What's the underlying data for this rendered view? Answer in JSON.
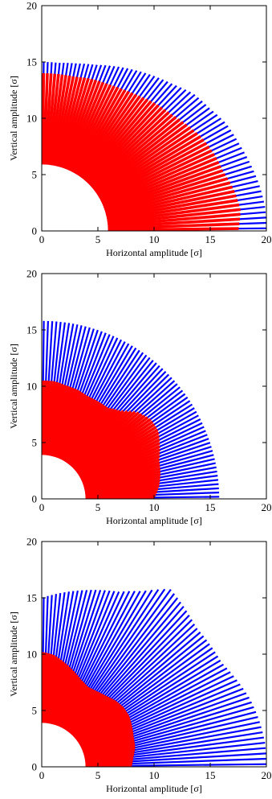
{
  "chart_data": [
    {
      "type": "scatter",
      "panel": 1,
      "xlabel": "Horizontal amplitude [σ]",
      "ylabel": "Vertical amplitude [σ]",
      "xlim": [
        0,
        20
      ],
      "ylim": [
        0,
        20
      ],
      "xticks": [
        0,
        5,
        10,
        15,
        20
      ],
      "yticks": [
        0,
        5,
        10,
        15,
        20
      ],
      "grid": false,
      "excluded_core_radius": 5.9,
      "series": [
        {
          "color": "#0000ff",
          "polar_scan_outer_radius": [
            20.0,
            20.0,
            19.8,
            19.5,
            19.2,
            19.0,
            18.5,
            18.2,
            17.5,
            17.0,
            16.5,
            16.0,
            15.5,
            15.2,
            15.0,
            15.0
          ]
        },
        {
          "color": "#ff0000",
          "polar_scan_outer_radius": [
            17.5,
            17.8,
            17.5,
            17.0,
            16.8,
            16.5,
            16.0,
            15.5,
            15.2,
            14.8,
            14.5,
            14.3,
            14.2,
            14.0,
            14.0,
            14.0
          ]
        }
      ]
    },
    {
      "type": "scatter",
      "panel": 2,
      "xlabel": "Horizontal amplitude [σ]",
      "ylabel": "Vertical amplitude [σ]",
      "xlim": [
        0,
        20
      ],
      "ylim": [
        0,
        20
      ],
      "xticks": [
        0,
        5,
        10,
        15,
        20
      ],
      "yticks": [
        0,
        5,
        10,
        15,
        20
      ],
      "grid": false,
      "excluded_core_radius": 3.9,
      "series": [
        {
          "color": "#0000ff",
          "polar_scan_outer_radius": [
            15.8,
            15.8,
            15.8,
            15.8,
            15.8,
            15.8,
            15.8,
            15.8,
            15.8,
            15.8,
            15.8,
            15.8,
            15.8,
            15.8,
            15.8,
            15.8
          ]
        },
        {
          "color": "#ff0000",
          "polar_scan_outer_radius": [
            10.0,
            10.5,
            10.8,
            11.0,
            11.5,
            12.0,
            12.0,
            11.5,
            10.5,
            10.0,
            10.0,
            10.0,
            10.2,
            10.3,
            10.5,
            10.5
          ]
        }
      ]
    },
    {
      "type": "scatter",
      "panel": 3,
      "xlabel": "Horizontal amplitude [σ]",
      "ylabel": "Vertical amplitude [σ]",
      "xlim": [
        0,
        20
      ],
      "ylim": [
        0,
        20
      ],
      "xticks": [
        0,
        5,
        10,
        15,
        20
      ],
      "yticks": [
        0,
        5,
        10,
        15,
        20
      ],
      "grid": false,
      "excluded_core_radius": 3.9,
      "series": [
        {
          "color": "#0000ff",
          "polar_scan_outer_radius": [
            20.0,
            20.0,
            19.8,
            19.5,
            19.0,
            18.5,
            18.5,
            18.5,
            19.0,
            19.5,
            18.0,
            17.0,
            16.5,
            16.0,
            15.5,
            15.0
          ]
        },
        {
          "color": "#ff0000",
          "polar_scan_outer_radius": [
            8.0,
            8.2,
            8.5,
            8.6,
            8.8,
            9.0,
            9.0,
            8.8,
            8.5,
            8.3,
            8.2,
            8.5,
            9.0,
            9.5,
            10.0,
            10.2
          ]
        }
      ]
    }
  ]
}
